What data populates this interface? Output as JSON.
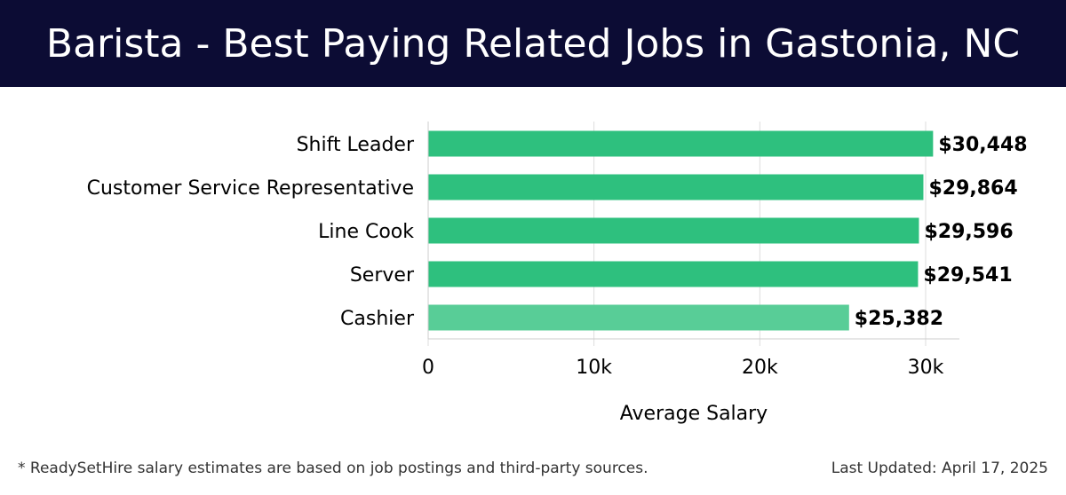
{
  "title": "Barista - Best Paying Related Jobs in Gastonia, NC",
  "footnote": "* ReadySetHire salary estimates are based on job postings and third-party sources.",
  "last_updated": "Last Updated: April 17, 2025",
  "colors": {
    "header_bg": "#0c0c34",
    "bar": "#2ec07e",
    "bar_highlight": "#58cd97",
    "grid": "#dddddd"
  },
  "chart_data": {
    "type": "bar",
    "orientation": "horizontal",
    "categories": [
      "Shift Leader",
      "Customer Service Representative",
      "Line Cook",
      "Server",
      "Cashier"
    ],
    "values": [
      30448,
      29864,
      29596,
      29541,
      25382
    ],
    "value_labels": [
      "$30,448",
      "$29,864",
      "$29,596",
      "$29,541",
      "$25,382"
    ],
    "xlabel": "Average Salary",
    "xlim": [
      0,
      32000
    ],
    "xticks": [
      0,
      10000,
      20000,
      30000
    ],
    "xtick_labels": [
      "0",
      "10k",
      "20k",
      "30k"
    ],
    "grid": true
  }
}
